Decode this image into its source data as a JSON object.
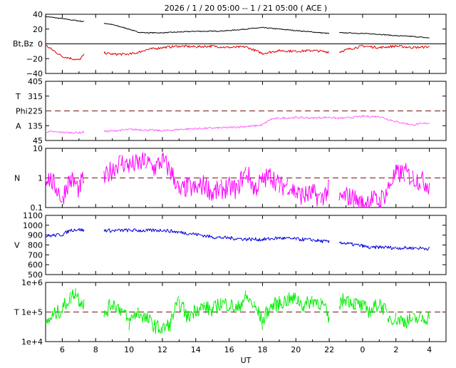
{
  "title": "2026 /  1 / 20   05:00 --  1 / 21   05:00 ( ACE )",
  "xlabel": "UT",
  "x_ticks": [
    "6",
    "8",
    "10",
    "12",
    "14",
    "16",
    "18",
    "20",
    "22",
    "0",
    "2",
    "4"
  ],
  "colors": {
    "bt": "#000000",
    "bz": "#e00000",
    "phi": "#ff66ff",
    "density": "#ff00ff",
    "velocity": "#0000dd",
    "temperature": "#00ee00",
    "reference": "#8b3a3a"
  },
  "chart_data": [
    {
      "type": "line",
      "name": "mag",
      "ylabel": "Bt,Bz",
      "ylim": [
        -40,
        40
      ],
      "y_ticks": [
        "40",
        "20",
        "0",
        "−20",
        "−40"
      ],
      "x_hours": [
        5,
        6,
        7,
        7.3,
        8.5,
        9,
        10,
        10.5,
        11,
        12,
        13,
        14,
        15,
        16,
        17,
        18,
        19,
        20,
        21,
        22,
        22.6,
        23,
        24,
        25,
        26,
        27,
        28
      ],
      "series": [
        {
          "name": "Bt",
          "values": [
            37,
            34,
            31,
            30,
            28,
            26,
            20,
            16,
            15,
            15,
            16,
            17,
            17,
            18,
            20,
            22,
            20,
            18,
            16,
            14,
            15,
            15,
            14,
            13,
            11,
            10,
            8
          ]
        },
        {
          "name": "Bz",
          "values": [
            -2,
            -17,
            -22,
            -15,
            -12,
            -14,
            -14,
            -12,
            -8,
            -5,
            -3,
            -4,
            -3,
            -5,
            -4,
            -13,
            -9,
            -10,
            -9,
            -11,
            -11,
            -8,
            -3,
            -5,
            -3,
            -5,
            -4
          ]
        }
      ]
    },
    {
      "type": "line",
      "name": "phi",
      "ylabel_lines": [
        "T",
        "Phi",
        "A"
      ],
      "ylim": [
        45,
        405
      ],
      "y_ticks": [
        "405",
        "315",
        "225",
        "135",
        "45"
      ],
      "reference": 225,
      "x_hours": [
        5,
        6,
        7,
        7.3,
        8.5,
        9,
        10,
        11,
        12,
        13,
        14,
        15,
        16,
        17,
        17.5,
        18,
        18.5,
        19,
        20,
        21,
        22,
        22.5,
        23,
        24,
        25,
        26,
        27,
        28
      ],
      "values": [
        100,
        94,
        92,
        96,
        100,
        103,
        112,
        110,
        104,
        112,
        117,
        120,
        124,
        130,
        133,
        140,
        175,
        180,
        185,
        182,
        186,
        180,
        182,
        192,
        190,
        160,
        140,
        152
      ]
    },
    {
      "type": "line",
      "name": "density",
      "ylabel": "N",
      "scale": "log",
      "ylim": [
        0.1,
        10
      ],
      "y_ticks": [
        "10",
        "1",
        "0.1"
      ],
      "reference": 1,
      "x_hours": [
        5,
        5.5,
        6,
        6.5,
        7,
        7.3,
        8.5,
        9,
        9.5,
        10,
        10.5,
        11,
        11.5,
        12,
        12.5,
        13,
        13.5,
        14,
        14.5,
        15,
        15.5,
        16,
        16.5,
        17,
        17.5,
        18,
        18.5,
        19,
        19.5,
        20,
        20.5,
        21,
        21.5,
        22,
        22.6,
        23,
        23.5,
        24,
        24.5,
        25,
        25.5,
        26,
        26.5,
        27,
        27.5,
        28
      ],
      "values": [
        1.2,
        0.6,
        0.15,
        0.9,
        0.4,
        1.0,
        0.8,
        2.0,
        3.5,
        2.5,
        3.0,
        3.5,
        2.0,
        3.8,
        1.5,
        0.3,
        0.5,
        0.4,
        0.6,
        0.3,
        0.4,
        0.5,
        0.4,
        1.5,
        0.4,
        0.8,
        1.2,
        0.5,
        0.6,
        0.3,
        0.25,
        0.3,
        0.2,
        0.4,
        0.18,
        0.25,
        0.2,
        0.12,
        0.2,
        0.15,
        0.35,
        1.3,
        1.5,
        1.0,
        0.8,
        0.6
      ]
    },
    {
      "type": "line",
      "name": "velocity",
      "ylabel": "V",
      "ylim": [
        500,
        1100
      ],
      "y_ticks": [
        "1100",
        "1000",
        "900",
        "800",
        "700",
        "600",
        "500"
      ],
      "x_hours": [
        5,
        6,
        6.5,
        7,
        7.3,
        8.5,
        9,
        10,
        11,
        12,
        13,
        14,
        15,
        16,
        17,
        18,
        19,
        20,
        21,
        22,
        22.6,
        23,
        24,
        24.5,
        25,
        26,
        27,
        28
      ],
      "values": [
        890,
        905,
        950,
        960,
        945,
        950,
        945,
        950,
        945,
        950,
        930,
        910,
        880,
        870,
        860,
        855,
        870,
        860,
        850,
        830,
        830,
        815,
        790,
        770,
        780,
        770,
        770,
        765
      ]
    },
    {
      "type": "line",
      "name": "temperature",
      "ylabel": "T",
      "scale": "log",
      "ylim": [
        10000,
        1000000
      ],
      "y_ticks": [
        "1e+6",
        "1e+5",
        "1e+4"
      ],
      "reference": 100000,
      "x_hours": [
        5,
        5.5,
        6,
        6.5,
        6.8,
        7,
        7.3,
        8.5,
        9,
        9.5,
        10,
        10.5,
        11,
        11.5,
        12,
        12.5,
        13,
        13.5,
        14,
        14.5,
        15,
        15.5,
        16,
        16.5,
        17,
        17.5,
        18,
        18.5,
        19,
        19.5,
        20,
        20.5,
        21,
        21.5,
        22,
        22.6,
        23,
        23.5,
        24,
        24.5,
        25,
        25.5,
        26,
        26.5,
        27,
        27.5,
        28
      ],
      "values": [
        35000,
        80000,
        120000,
        300000,
        500000,
        260000,
        200000,
        60000,
        200000,
        120000,
        40000,
        100000,
        60000,
        35000,
        25000,
        40000,
        200000,
        60000,
        120000,
        150000,
        110000,
        200000,
        180000,
        120000,
        320000,
        150000,
        40000,
        150000,
        200000,
        250000,
        280000,
        150000,
        260000,
        200000,
        40000,
        200000,
        280000,
        200000,
        150000,
        100000,
        200000,
        70000,
        60000,
        50000,
        55000,
        60000,
        65000
      ]
    }
  ]
}
